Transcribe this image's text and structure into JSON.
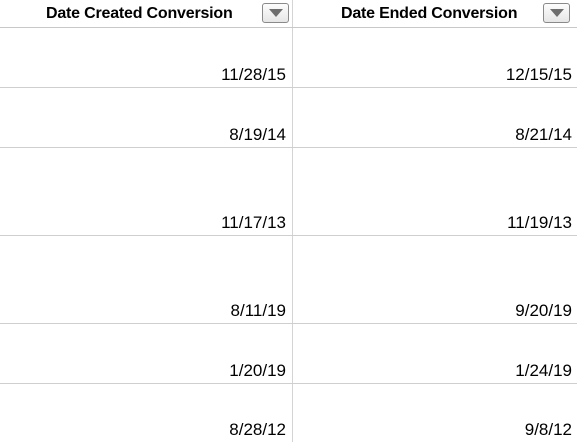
{
  "columns": [
    {
      "label": "Date Created Conversion",
      "filter_icon": "dropdown-arrow-icon"
    },
    {
      "label": "Date Ended Conversion",
      "filter_icon": "dropdown-arrow-icon"
    }
  ],
  "rows": [
    {
      "created": "11/28/15",
      "ended": "12/15/15"
    },
    {
      "created": "8/19/14",
      "ended": "8/21/14"
    },
    {
      "created": "11/17/13",
      "ended": "11/19/13"
    },
    {
      "created": "8/11/19",
      "ended": "9/20/19"
    },
    {
      "created": "1/20/19",
      "ended": "1/24/19"
    },
    {
      "created": "8/28/12",
      "ended": "9/8/12"
    }
  ]
}
